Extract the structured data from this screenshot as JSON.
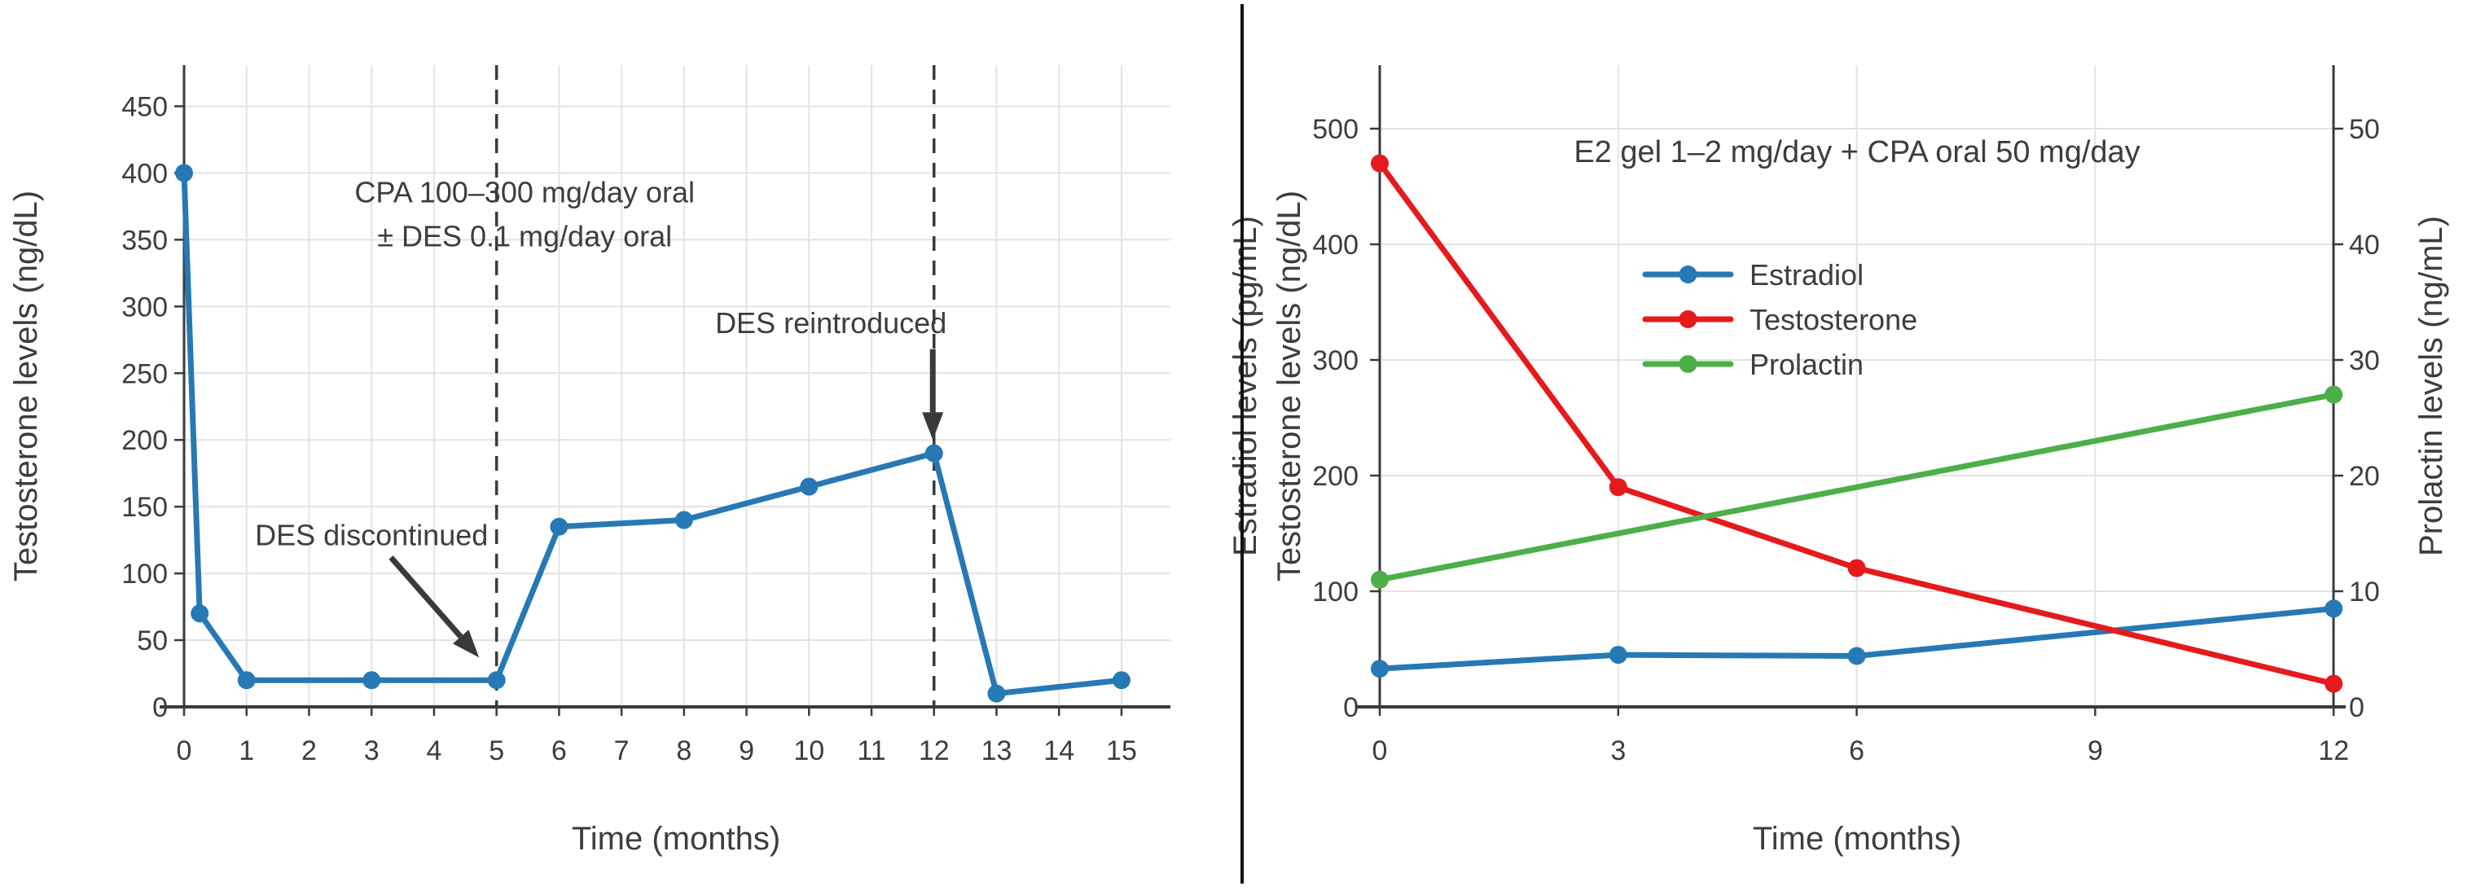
{
  "figure": {
    "background": "#ffffff",
    "divider_color": "#111111",
    "text_color": "#3d3d3d",
    "grid_color": "#e3e3e3",
    "axis_color": "#3a3a3a",
    "annotation_color": "#3a3a3a"
  },
  "chart_data": [
    {
      "type": "line",
      "title": "",
      "xlabel": "Time (months)",
      "ylabel": "Testosterone levels (ng/dL)",
      "xlim": [
        0,
        15.8
      ],
      "ylim": [
        0,
        481
      ],
      "x_ticks": [
        0,
        1,
        2,
        3,
        4,
        5,
        6,
        7,
        8,
        9,
        10,
        11,
        12,
        13,
        14,
        15
      ],
      "y_ticks": [
        0,
        50,
        100,
        150,
        200,
        250,
        300,
        350,
        400,
        450
      ],
      "grid": "on",
      "legend": "none",
      "dashed_vlines_x": [
        5,
        12
      ],
      "series": [
        {
          "name": "Testosterone",
          "color": "#2779b5",
          "axis": "left",
          "x": [
            0,
            0.25,
            1,
            3,
            5,
            6,
            8,
            10,
            12,
            13,
            15
          ],
          "y": [
            400,
            70,
            20,
            20,
            20,
            135,
            140,
            165,
            190,
            10,
            20
          ]
        }
      ],
      "annotations": [
        {
          "id": "cpa-des-label-line1",
          "text": "CPA 100–300 mg/day oral",
          "x": 5.45,
          "y": 386
        },
        {
          "id": "cpa-des-label-line2",
          "text": "± DES 0.1 mg/day oral",
          "x": 5.45,
          "y": 353
        },
        {
          "id": "des-discontinued-label",
          "text": "DES discontinued",
          "x": 3.0,
          "y": 129
        },
        {
          "id": "des-reintroduced-label",
          "text": "DES reintroduced",
          "x": 10.35,
          "y": 288
        }
      ],
      "arrows": [
        {
          "id": "des-discontinued-arrow",
          "x1": 3.31,
          "y1": 112,
          "x2": 4.72,
          "y2": 37
        },
        {
          "id": "des-reintroduced-arrow",
          "x1": 11.98,
          "y1": 268,
          "x2": 11.98,
          "y2": 200
        }
      ]
    },
    {
      "type": "line",
      "title": "E2 gel 1–2 mg/day + CPA oral 50 mg/day",
      "xlabel": "Time (months)",
      "ylabel_left_outer": "Estradiol levels (pg/mL)",
      "ylabel_left_inner": "Testosterone levels (ng/dL)",
      "ylabel_right": "Prolactin levels (ng/mL)",
      "xlim": [
        0,
        12
      ],
      "ylim_left": [
        0,
        555
      ],
      "ylim_right": [
        0,
        55.5
      ],
      "x_ticks": [
        0,
        3,
        6,
        9,
        12
      ],
      "y_ticks_left": [
        0,
        100,
        200,
        300,
        400,
        500
      ],
      "y_ticks_right": [
        0,
        10,
        20,
        30,
        40,
        50
      ],
      "grid": "on",
      "legend_position": "inside-right",
      "legend_entries": [
        "Estradiol",
        "Testosterone",
        "Prolactin"
      ],
      "series": [
        {
          "name": "Estradiol",
          "color": "#2779b5",
          "axis": "left",
          "x": [
            0,
            3,
            6,
            12
          ],
          "y": [
            33,
            45,
            44,
            85
          ]
        },
        {
          "name": "Testosterone",
          "color": "#e41a1c",
          "axis": "left",
          "x": [
            0,
            3,
            6,
            12
          ],
          "y": [
            470,
            190,
            120,
            20
          ]
        },
        {
          "name": "Prolactin",
          "color": "#4daf4a",
          "axis": "right",
          "x": [
            0,
            12
          ],
          "y": [
            11,
            27
          ]
        }
      ]
    }
  ]
}
